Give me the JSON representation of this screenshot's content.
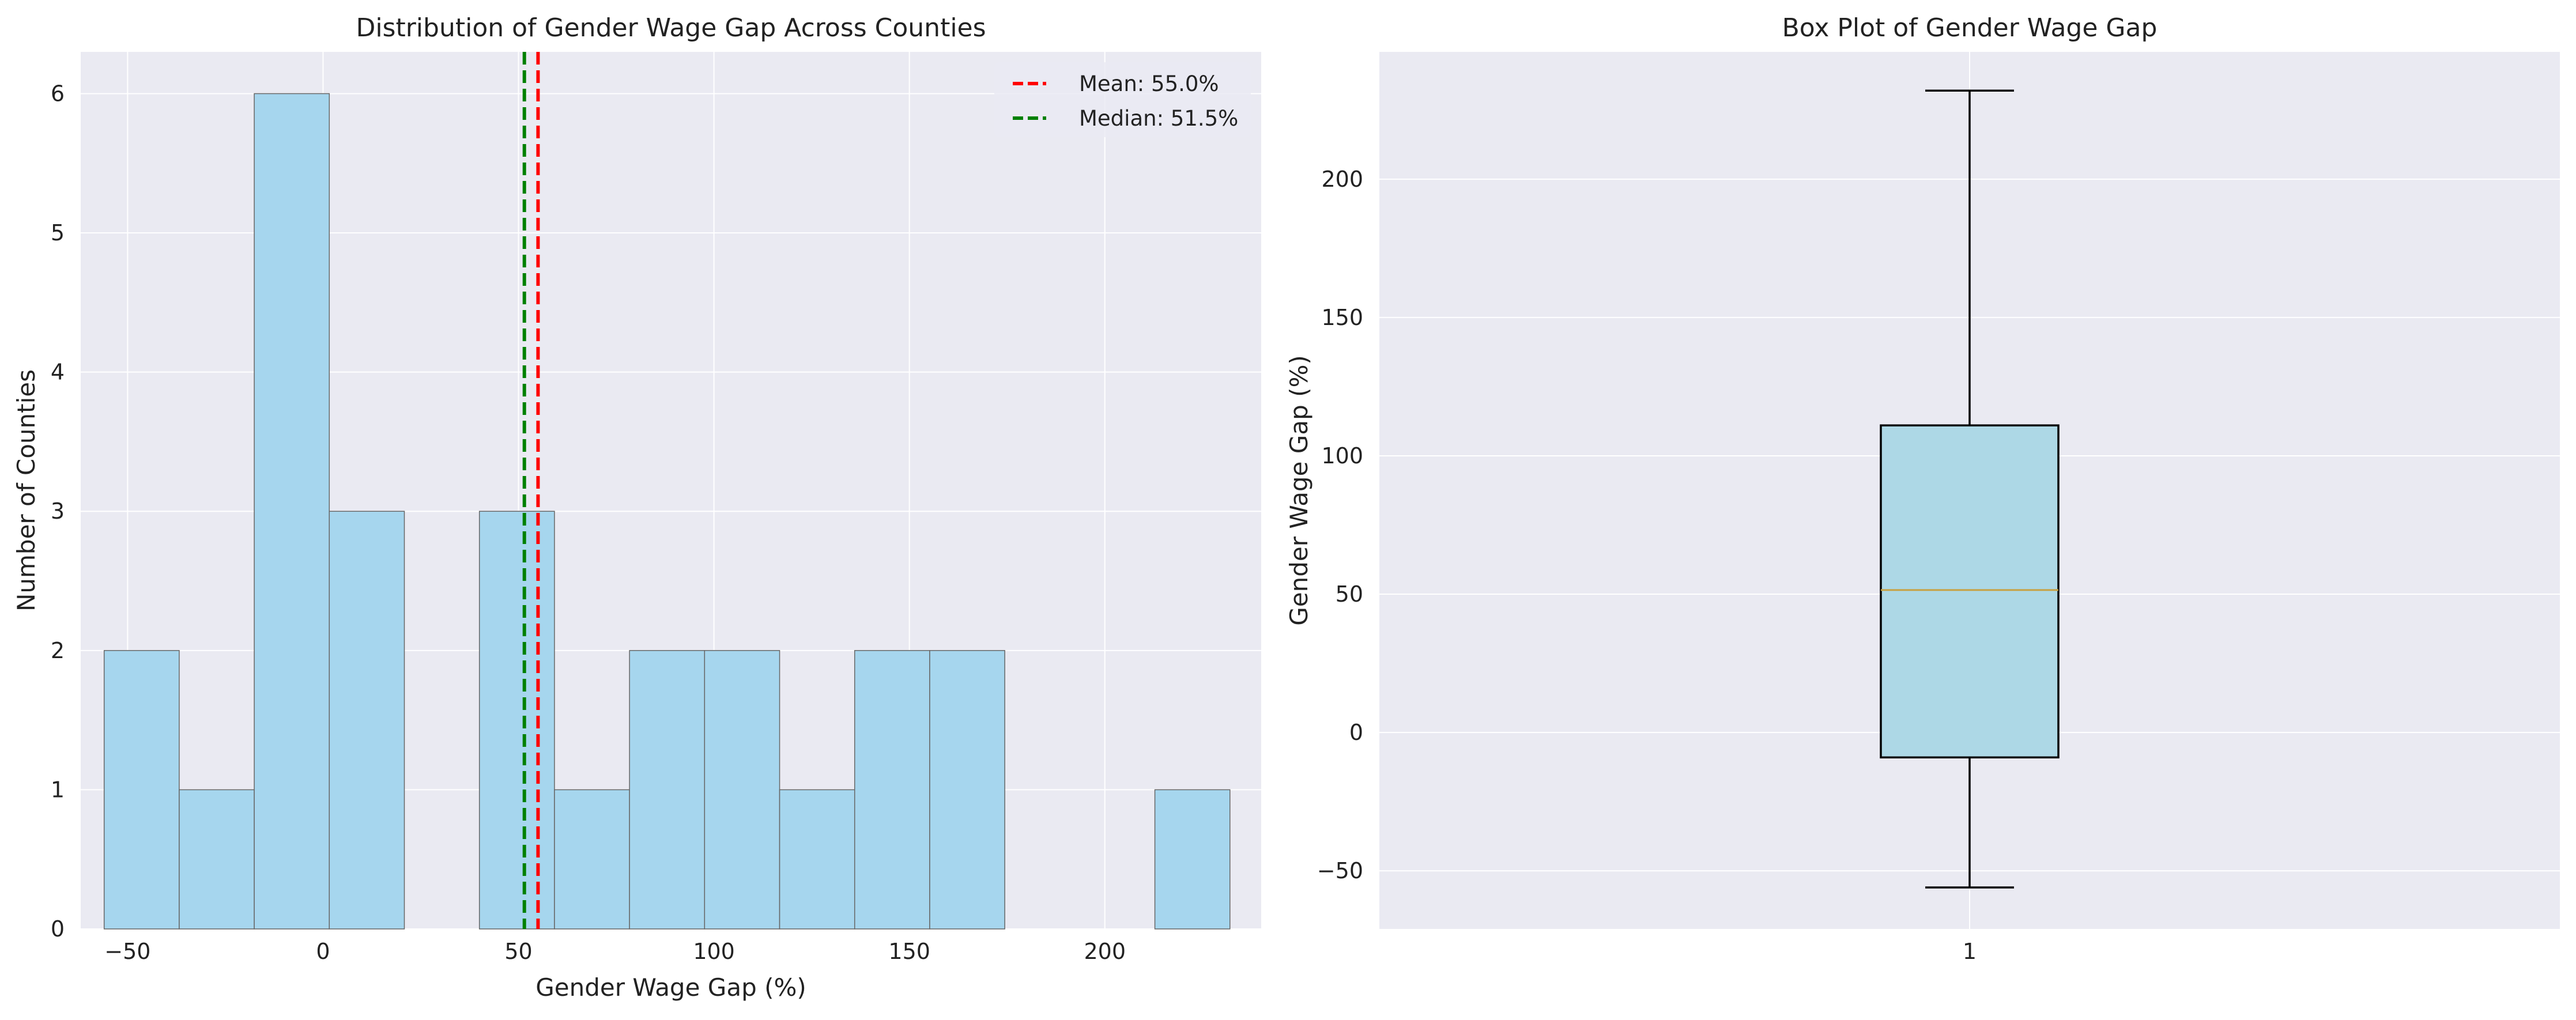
{
  "chart_data": [
    {
      "type": "bar",
      "title": "Distribution of Gender Wage Gap Across Counties",
      "xlabel": "Gender Wage Gap (%)",
      "ylabel": "Number of Counties",
      "xlim": [
        -62,
        240
      ],
      "ylim": [
        0,
        6.3
      ],
      "xticks": [
        -50,
        0,
        50,
        100,
        150,
        200
      ],
      "yticks": [
        0,
        1,
        2,
        3,
        4,
        5,
        6
      ],
      "bins": [
        {
          "start": -56.0,
          "end": -36.8,
          "count": 2
        },
        {
          "start": -36.8,
          "end": -17.6,
          "count": 1
        },
        {
          "start": -17.6,
          "end": 1.6,
          "count": 6
        },
        {
          "start": 1.6,
          "end": 20.8,
          "count": 3
        },
        {
          "start": 20.8,
          "end": 40.0,
          "count": 0
        },
        {
          "start": 40.0,
          "end": 59.2,
          "count": 3
        },
        {
          "start": 59.2,
          "end": 78.4,
          "count": 1
        },
        {
          "start": 78.4,
          "end": 97.6,
          "count": 2
        },
        {
          "start": 97.6,
          "end": 116.8,
          "count": 2
        },
        {
          "start": 116.8,
          "end": 136.0,
          "count": 1
        },
        {
          "start": 136.0,
          "end": 155.2,
          "count": 2
        },
        {
          "start": 155.2,
          "end": 174.4,
          "count": 2
        },
        {
          "start": 174.4,
          "end": 193.6,
          "count": 0
        },
        {
          "start": 193.6,
          "end": 212.8,
          "count": 0
        },
        {
          "start": 212.8,
          "end": 232.0,
          "count": 1
        }
      ],
      "reference_lines": [
        {
          "label": "Mean: 55.0%",
          "value": 55.0,
          "color": "#ff0000",
          "style": "dashed"
        },
        {
          "label": "Median: 51.5%",
          "value": 51.5,
          "color": "#008000",
          "style": "dashed"
        }
      ],
      "legend": "top-right",
      "grid": true,
      "bar_color": "#a6d6ee"
    },
    {
      "type": "box",
      "title": "Box Plot of Gender Wage Gap",
      "xlabel": "",
      "ylabel": "Gender Wage Gap (%)",
      "ylim": [
        -71,
        246
      ],
      "yticks": [
        -50,
        0,
        50,
        100,
        150,
        200
      ],
      "xticks": [
        "1"
      ],
      "box": {
        "min": -56,
        "q1": -9,
        "median": 51.5,
        "q3": 111,
        "max": 232
      },
      "box_color": "#add8e6",
      "median_color": "#c8a040",
      "grid": true
    }
  ]
}
